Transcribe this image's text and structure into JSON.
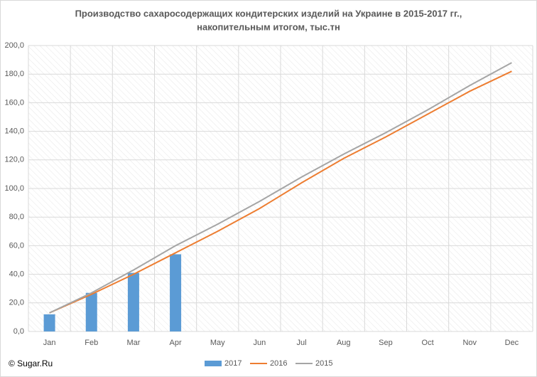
{
  "chart_data": {
    "type": "bar_line",
    "title": [
      "Производство сахаросодержащих кондитерских изделий на Украине в 2015-2017 гг.,",
      "накопительным итогом, тыс.тн"
    ],
    "source": "© Sugar.Ru",
    "categories": [
      "Jan",
      "Feb",
      "Mar",
      "Apr",
      "May",
      "Jun",
      "Jul",
      "Aug",
      "Sep",
      "Oct",
      "Nov",
      "Dec"
    ],
    "series": [
      {
        "name": "2017",
        "type": "bar",
        "color": "#5b9bd5",
        "values": [
          12,
          27,
          41,
          54,
          null,
          null,
          null,
          null,
          null,
          null,
          null,
          null
        ]
      },
      {
        "name": "2016",
        "type": "line",
        "color": "#ed7d31",
        "values": [
          13,
          26,
          40,
          55,
          70,
          86,
          104,
          121,
          136,
          152,
          168,
          182
        ]
      },
      {
        "name": "2015",
        "type": "line",
        "color": "#a5a5a5",
        "values": [
          13,
          27,
          43,
          60,
          75,
          91,
          108,
          124,
          139,
          155,
          172,
          188
        ]
      }
    ],
    "ylim": [
      0,
      200
    ],
    "yticks": [
      {
        "value": 0,
        "label": "0,0"
      },
      {
        "value": 20,
        "label": "20,0"
      },
      {
        "value": 40,
        "label": "40,0"
      },
      {
        "value": 60,
        "label": "60,0"
      },
      {
        "value": 80,
        "label": "80,0"
      },
      {
        "value": 100,
        "label": "100,0"
      },
      {
        "value": 120,
        "label": "120,0"
      },
      {
        "value": 140,
        "label": "140,0"
      },
      {
        "value": 160,
        "label": "160,0"
      },
      {
        "value": 180,
        "label": "180,0"
      },
      {
        "value": 200,
        "label": "200,0"
      }
    ],
    "grid": true,
    "legend": "bottom"
  }
}
